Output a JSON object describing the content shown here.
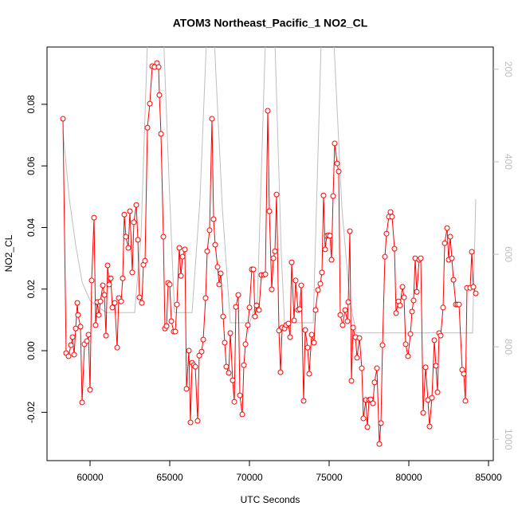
{
  "chart_data": {
    "type": "line",
    "title": "ATOM3 Northeast_Pacific_1 NO2_CL",
    "x_label": "UTC Seconds",
    "y_label": "NO2_CL",
    "xlim": [
      57300,
      85300
    ],
    "ylim": [
      -0.0357,
      0.0986
    ],
    "y2lim": [
      1046,
      152
    ],
    "xticks": [
      60000,
      65000,
      70000,
      75000,
      80000,
      85000
    ],
    "yticks": [
      -0.02,
      {
        "value": 0,
        "label": "0.00"
      },
      0.02,
      0.04,
      0.06,
      0.08
    ],
    "y2ticks": [
      200,
      400,
      600,
      800,
      1000
    ],
    "series": [
      {
        "color": "#ff0000",
        "markers": true,
        "x": [
          58300,
          58500,
          58650,
          58800,
          58900,
          59000,
          59100,
          59200,
          59250,
          59400,
          59500,
          59650,
          59800,
          59900,
          60000,
          60100,
          60250,
          60350,
          60450,
          60550,
          60650,
          60800,
          60900,
          61000,
          61100,
          61200,
          61300,
          61400,
          61550,
          61700,
          61800,
          61950,
          62050,
          62150,
          62250,
          62400,
          62500,
          62650,
          62750,
          62900,
          63000,
          63100,
          63250,
          63350,
          63450,
          63600,
          63750,
          63900,
          64050,
          64200,
          64300,
          64350,
          64450,
          64600,
          64700,
          64800,
          64900,
          65000,
          65100,
          65250,
          65350,
          65450,
          65600,
          65700,
          65800,
          65950,
          66050,
          66200,
          66300,
          66400,
          66500,
          66600,
          66750,
          66850,
          67000,
          67100,
          67250,
          67350,
          67500,
          67650,
          67750,
          67850,
          68000,
          68100,
          68200,
          68350,
          68450,
          68550,
          68700,
          68800,
          68950,
          69050,
          69150,
          69300,
          69400,
          69550,
          69650,
          69750,
          69900,
          70000,
          70150,
          70250,
          70350,
          70450,
          70600,
          70750,
          70900,
          71000,
          71150,
          71250,
          71400,
          71500,
          71600,
          71700,
          71850,
          71950,
          72050,
          72200,
          72300,
          72450,
          72550,
          72650,
          72800,
          72900,
          73050,
          73150,
          73250,
          73400,
          73500,
          73650,
          73750,
          73900,
          74050,
          74150,
          74300,
          74450,
          74550,
          74650,
          74750,
          74850,
          74950,
          75050,
          75150,
          75250,
          75350,
          75500,
          75600,
          75700,
          75850,
          76000,
          76150,
          76200,
          76300,
          76400,
          76500,
          76650,
          76750,
          76900,
          77050,
          77150,
          77300,
          77400,
          77500,
          77600,
          77750,
          77850,
          78000,
          78150,
          78250,
          78350,
          78500,
          78600,
          78750,
          78850,
          78950,
          79100,
          79200,
          79350,
          79450,
          79600,
          79700,
          79800,
          79950,
          80100,
          80200,
          80300,
          80400,
          80500,
          80650,
          80750,
          80900,
          81050,
          81200,
          81300,
          81450,
          81600,
          81700,
          81800,
          81900,
          82000,
          82150,
          82250,
          82400,
          82500,
          82600,
          82700,
          82800,
          82950,
          83050,
          83150,
          83350,
          83450,
          83550,
          83650,
          83850,
          83950,
          84050,
          84200
        ],
        "values": [
          0.0753,
          -0.0008,
          -0.0018,
          0.0018,
          0.0044,
          -0.0013,
          0.0072,
          0.0155,
          0.0116,
          0.0078,
          -0.0168,
          0.0021,
          0.0031,
          0.0052,
          -0.0127,
          0.0228,
          0.0432,
          0.0083,
          0.0158,
          0.0116,
          0.016,
          0.0212,
          0.0181,
          0.0049,
          0.0277,
          0.0215,
          0.0235,
          0.014,
          0.0155,
          0.001,
          0.0171,
          0.016,
          0.0235,
          0.0442,
          0.037,
          0.0334,
          0.0453,
          0.0254,
          0.0417,
          0.0473,
          0.036,
          0.0173,
          0.0155,
          0.0279,
          0.0292,
          0.0724,
          0.0802,
          0.0924,
          0.0921,
          0.0934,
          0.0921,
          0.083,
          0.0704,
          0.037,
          0.0072,
          0.008,
          0.022,
          0.0215,
          0.0096,
          0.0062,
          0.0062,
          0.015,
          0.0334,
          0.0243,
          0.0305,
          0.0329,
          -0.0124,
          0.0,
          -0.0233,
          -0.0039,
          -0.0047,
          -0.0052,
          -0.0228,
          -0.0016,
          -0.0003,
          0.0036,
          0.0171,
          0.0323,
          0.0391,
          0.0753,
          0.0427,
          0.0344,
          0.0272,
          0.0215,
          0.0251,
          0.0111,
          0.0026,
          -0.0052,
          -0.0072,
          0.0057,
          -0.0096,
          -0.0166,
          0.0142,
          0.0181,
          -0.0145,
          -0.0207,
          -0.0047,
          0.0021,
          0.0083,
          0.014,
          0.0264,
          0.0264,
          0.0111,
          0.0147,
          0.0132,
          0.0246,
          0.0246,
          0.0248,
          0.0779,
          0.0453,
          0.0199,
          0.03,
          0.0323,
          0.0507,
          0.0065,
          -0.007,
          0.0075,
          0.0072,
          0.0083,
          0.0088,
          0.0044,
          0.0287,
          0.0098,
          0.0228,
          0.0132,
          0.0135,
          0.0212,
          -0.0163,
          0.0067,
          0.001,
          -0.0075,
          0.0052,
          0.0026,
          0.0132,
          0.0197,
          0.0217,
          0.0254,
          0.0504,
          0.0329,
          0.0373,
          0.0375,
          0.0373,
          0.0295,
          0.0502,
          0.0673,
          0.0608,
          0.0582,
          0.0116,
          0.0083,
          0.0132,
          0.0096,
          0.0158,
          0.0388,
          -0.0098,
          0.0075,
          0.0044,
          -0.0023,
          0.0041,
          -0.0057,
          -0.022,
          -0.016,
          -0.0248,
          -0.016,
          -0.0158,
          -0.0171,
          -0.0103,
          -0.0057,
          -0.0303,
          -0.0235,
          0.0018,
          0.0305,
          0.038,
          0.0435,
          0.045,
          0.0435,
          0.0331,
          0.0122,
          0.016,
          0.0147,
          0.0207,
          0.0173,
          0.0021,
          -0.0018,
          0.0054,
          0.0127,
          0.0163,
          0.03,
          0.0191,
          0.0295,
          0.03,
          -0.0202,
          -0.0054,
          -0.016,
          -0.0246,
          -0.0153,
          0.0034,
          -0.0049,
          -0.0135,
          0.0057,
          0.0049,
          0.014,
          0.0349,
          0.0398,
          0.0295,
          0.037,
          0.03,
          0.023,
          0.015,
          0.015,
          0.015,
          -0.0062,
          -0.0075,
          -0.0163,
          0.0204,
          0.0204,
          0.0321,
          0.0207,
          0.0186
        ]
      },
      {
        "color": "#bebebe",
        "axis": "y2",
        "markers": false,
        "x": [
          58300,
          58700,
          59100,
          59500,
          60000,
          61000,
          62000,
          62800,
          63200,
          63600,
          64000,
          64600,
          65000,
          65300,
          66000,
          66400,
          66900,
          67300,
          67800,
          68300,
          68800,
          70000,
          70500,
          71000,
          71600,
          72000,
          72200,
          74000,
          74500,
          75300,
          75800,
          76300,
          76700,
          80000,
          84000,
          84200
        ],
        "values": [
          334,
          480,
          580,
          660,
          700,
          726,
          726,
          726,
          560,
          140,
          100,
          120,
          480,
          726,
          726,
          726,
          480,
          140,
          140,
          500,
          748,
          748,
          700,
          140,
          140,
          600,
          748,
          748,
          140,
          140,
          500,
          700,
          770,
          770,
          770,
          481
        ]
      }
    ]
  }
}
